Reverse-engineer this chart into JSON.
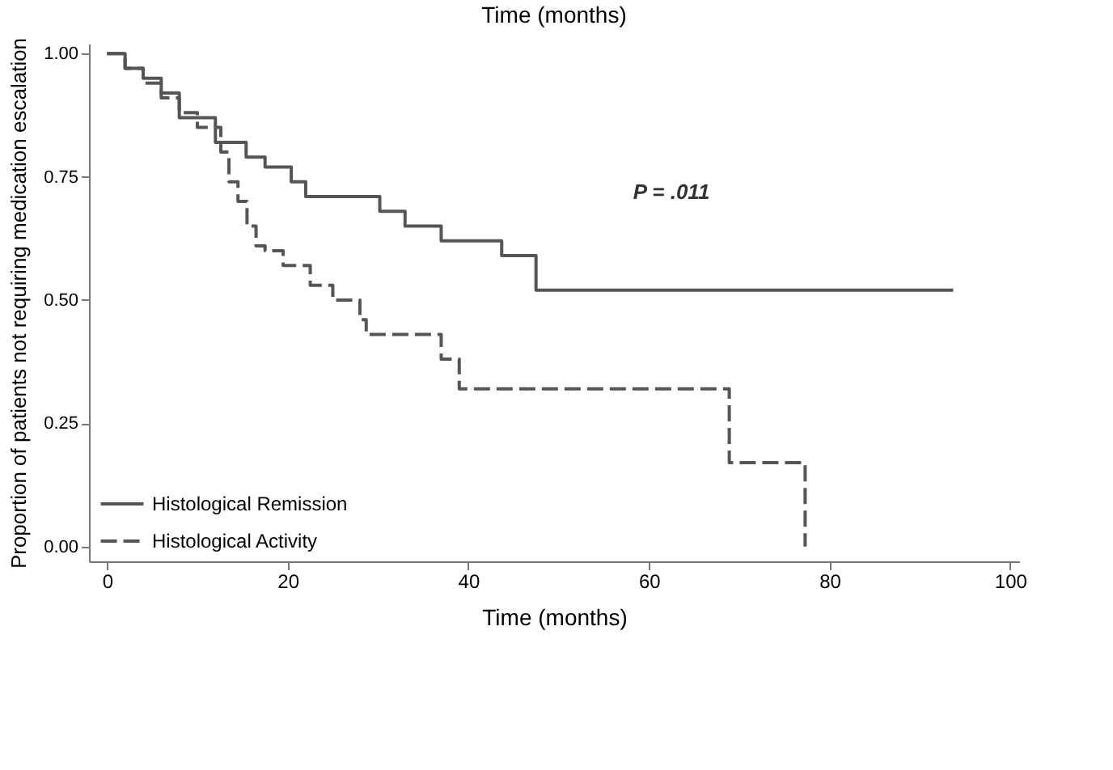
{
  "chart_data": {
    "type": "step",
    "title": "Time (months)",
    "xlabel": "Time (months)",
    "ylabel": "Proportion of patients not requiring medication escalation",
    "xlim": [
      -2,
      101
    ],
    "xticks": [
      0,
      20,
      40,
      60,
      80,
      100
    ],
    "ylim": [
      -0.03,
      1.02
    ],
    "yticks": [
      {
        "value": 0,
        "label": "0.00"
      },
      {
        "value": 0.25,
        "label": "0.25"
      },
      {
        "value": 0.5,
        "label": "0.50"
      },
      {
        "value": 0.75,
        "label": "0.75"
      },
      {
        "value": 1,
        "label": "1.00"
      }
    ],
    "grid": false,
    "legend": "bottom left",
    "marker": "none",
    "annotations": [
      "P = .011"
    ],
    "series": [
      {
        "name": "Histological Remission",
        "color": "#555555",
        "line_style": "solid",
        "x": [
          0,
          2,
          4,
          6,
          8,
          12,
          15.4,
          17.5,
          20.4,
          22,
          30.2,
          33,
          37,
          43.7,
          47.5,
          93.7
        ],
        "values": [
          1.0,
          0.97,
          0.95,
          0.92,
          0.87,
          0.82,
          0.79,
          0.77,
          0.74,
          0.71,
          0.68,
          0.65,
          0.62,
          0.59,
          0.52,
          0.52
        ]
      },
      {
        "name": "Histological Activity",
        "color": "#555555",
        "line_style": "dashed",
        "x": [
          0,
          2,
          4,
          6,
          8,
          10,
          12.6,
          13.5,
          14.5,
          15.5,
          16.5,
          17.5,
          19.5,
          22.5,
          25,
          28,
          28.7,
          37,
          39,
          68.9,
          77.3
        ],
        "values": [
          1.0,
          0.97,
          0.94,
          0.91,
          0.88,
          0.85,
          0.8,
          0.74,
          0.7,
          0.65,
          0.61,
          0.6,
          0.57,
          0.53,
          0.5,
          0.46,
          0.43,
          0.38,
          0.32,
          0.17,
          0.0
        ]
      }
    ]
  }
}
